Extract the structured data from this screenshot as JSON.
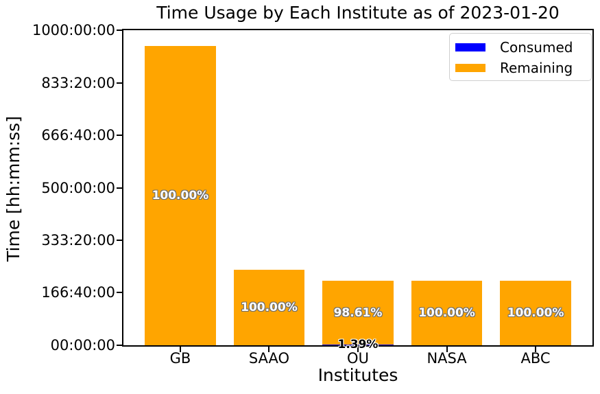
{
  "figure": {
    "background": "#ffffff",
    "text_color": "#000000",
    "spine_color": "#000000"
  },
  "chart_data": {
    "type": "bar",
    "stacked": true,
    "title": "Time Usage by Each Institute as of 2023-01-20",
    "xlabel": "Institutes",
    "ylabel": "Time [hh:mm:ss]",
    "categories": [
      "GB",
      "SAAO",
      "OU",
      "NASA",
      "ABC"
    ],
    "series": [
      {
        "name": "Consumed",
        "color": "#0000ff",
        "values_hours": [
          0,
          0,
          2.84,
          0,
          0
        ],
        "bar_labels": [
          "",
          "",
          "1.39%",
          "",
          ""
        ]
      },
      {
        "name": "Remaining",
        "color": "#ffa500",
        "values_hours": [
          950,
          240,
          201.16,
          205,
          205
        ],
        "bar_labels": [
          "100.00%",
          "100.00%",
          "98.61%",
          "100.00%",
          "100.00%"
        ]
      }
    ],
    "totals_hours": [
      950,
      240,
      204,
      205,
      205
    ],
    "ylim_hours": [
      0,
      1000
    ],
    "yticks": [
      {
        "hours": 0,
        "label": "00:00:00"
      },
      {
        "hours": 166.6667,
        "label": "166:40:00"
      },
      {
        "hours": 333.3333,
        "label": "333:20:00"
      },
      {
        "hours": 500,
        "label": "500:00:00"
      },
      {
        "hours": 666.6667,
        "label": "666:40:00"
      },
      {
        "hours": 833.3333,
        "label": "833:20:00"
      },
      {
        "hours": 1000,
        "label": "1000:00:00"
      }
    ],
    "grid": false,
    "legend": {
      "position": "upper-right",
      "items": [
        {
          "label": "Consumed",
          "color": "#0000ff"
        },
        {
          "label": "Remaining",
          "color": "#ffa500"
        }
      ]
    },
    "bar_label_style": {
      "remaining_text": "#ffffff",
      "remaining_outline": "#6e6e6e",
      "consumed_text": "#000000",
      "consumed_outline": "#ffffff"
    }
  }
}
